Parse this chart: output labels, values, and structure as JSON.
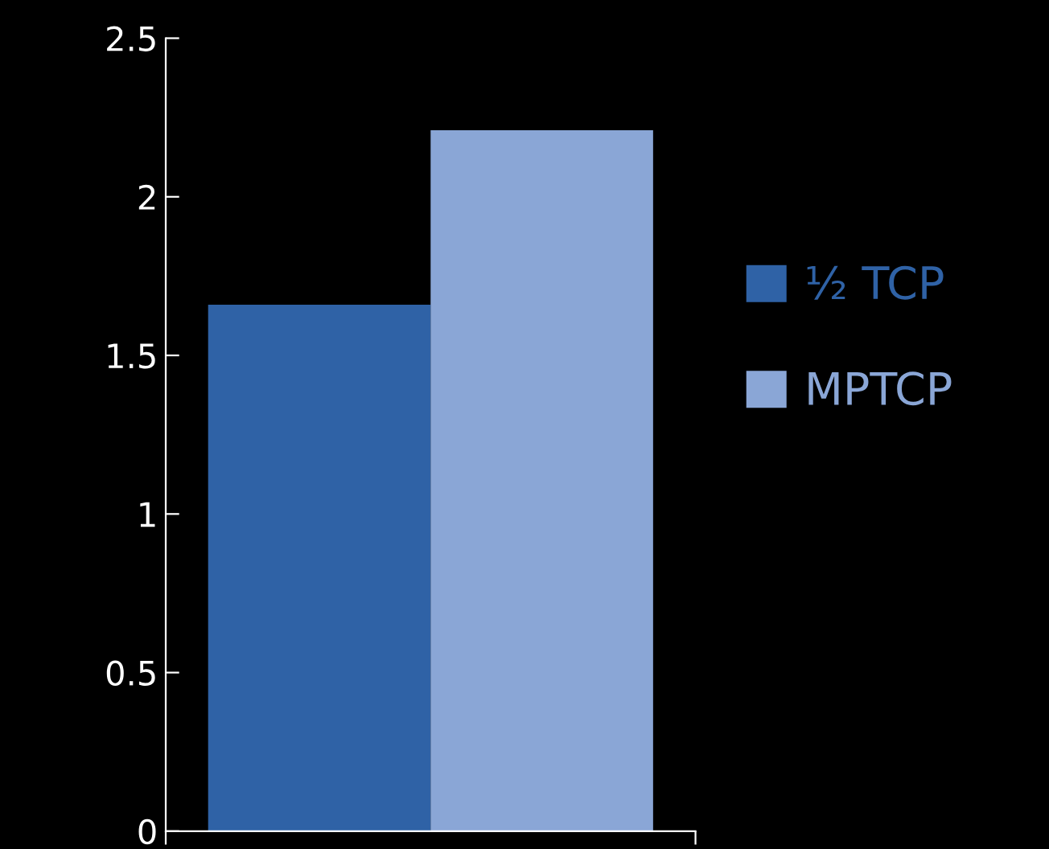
{
  "chart_data": {
    "type": "bar",
    "categories": [
      null
    ],
    "series": [
      {
        "name": "½ TCP",
        "color": "#2f62a6",
        "values": [
          1.66
        ]
      },
      {
        "name": "MPTCP",
        "color": "#8aa6d6",
        "values": [
          2.21
        ]
      }
    ],
    "ylim": [
      0,
      2.5
    ],
    "yticks": [
      0,
      0.5,
      1,
      1.5,
      2,
      2.5
    ],
    "grid": false,
    "legend": "right"
  }
}
